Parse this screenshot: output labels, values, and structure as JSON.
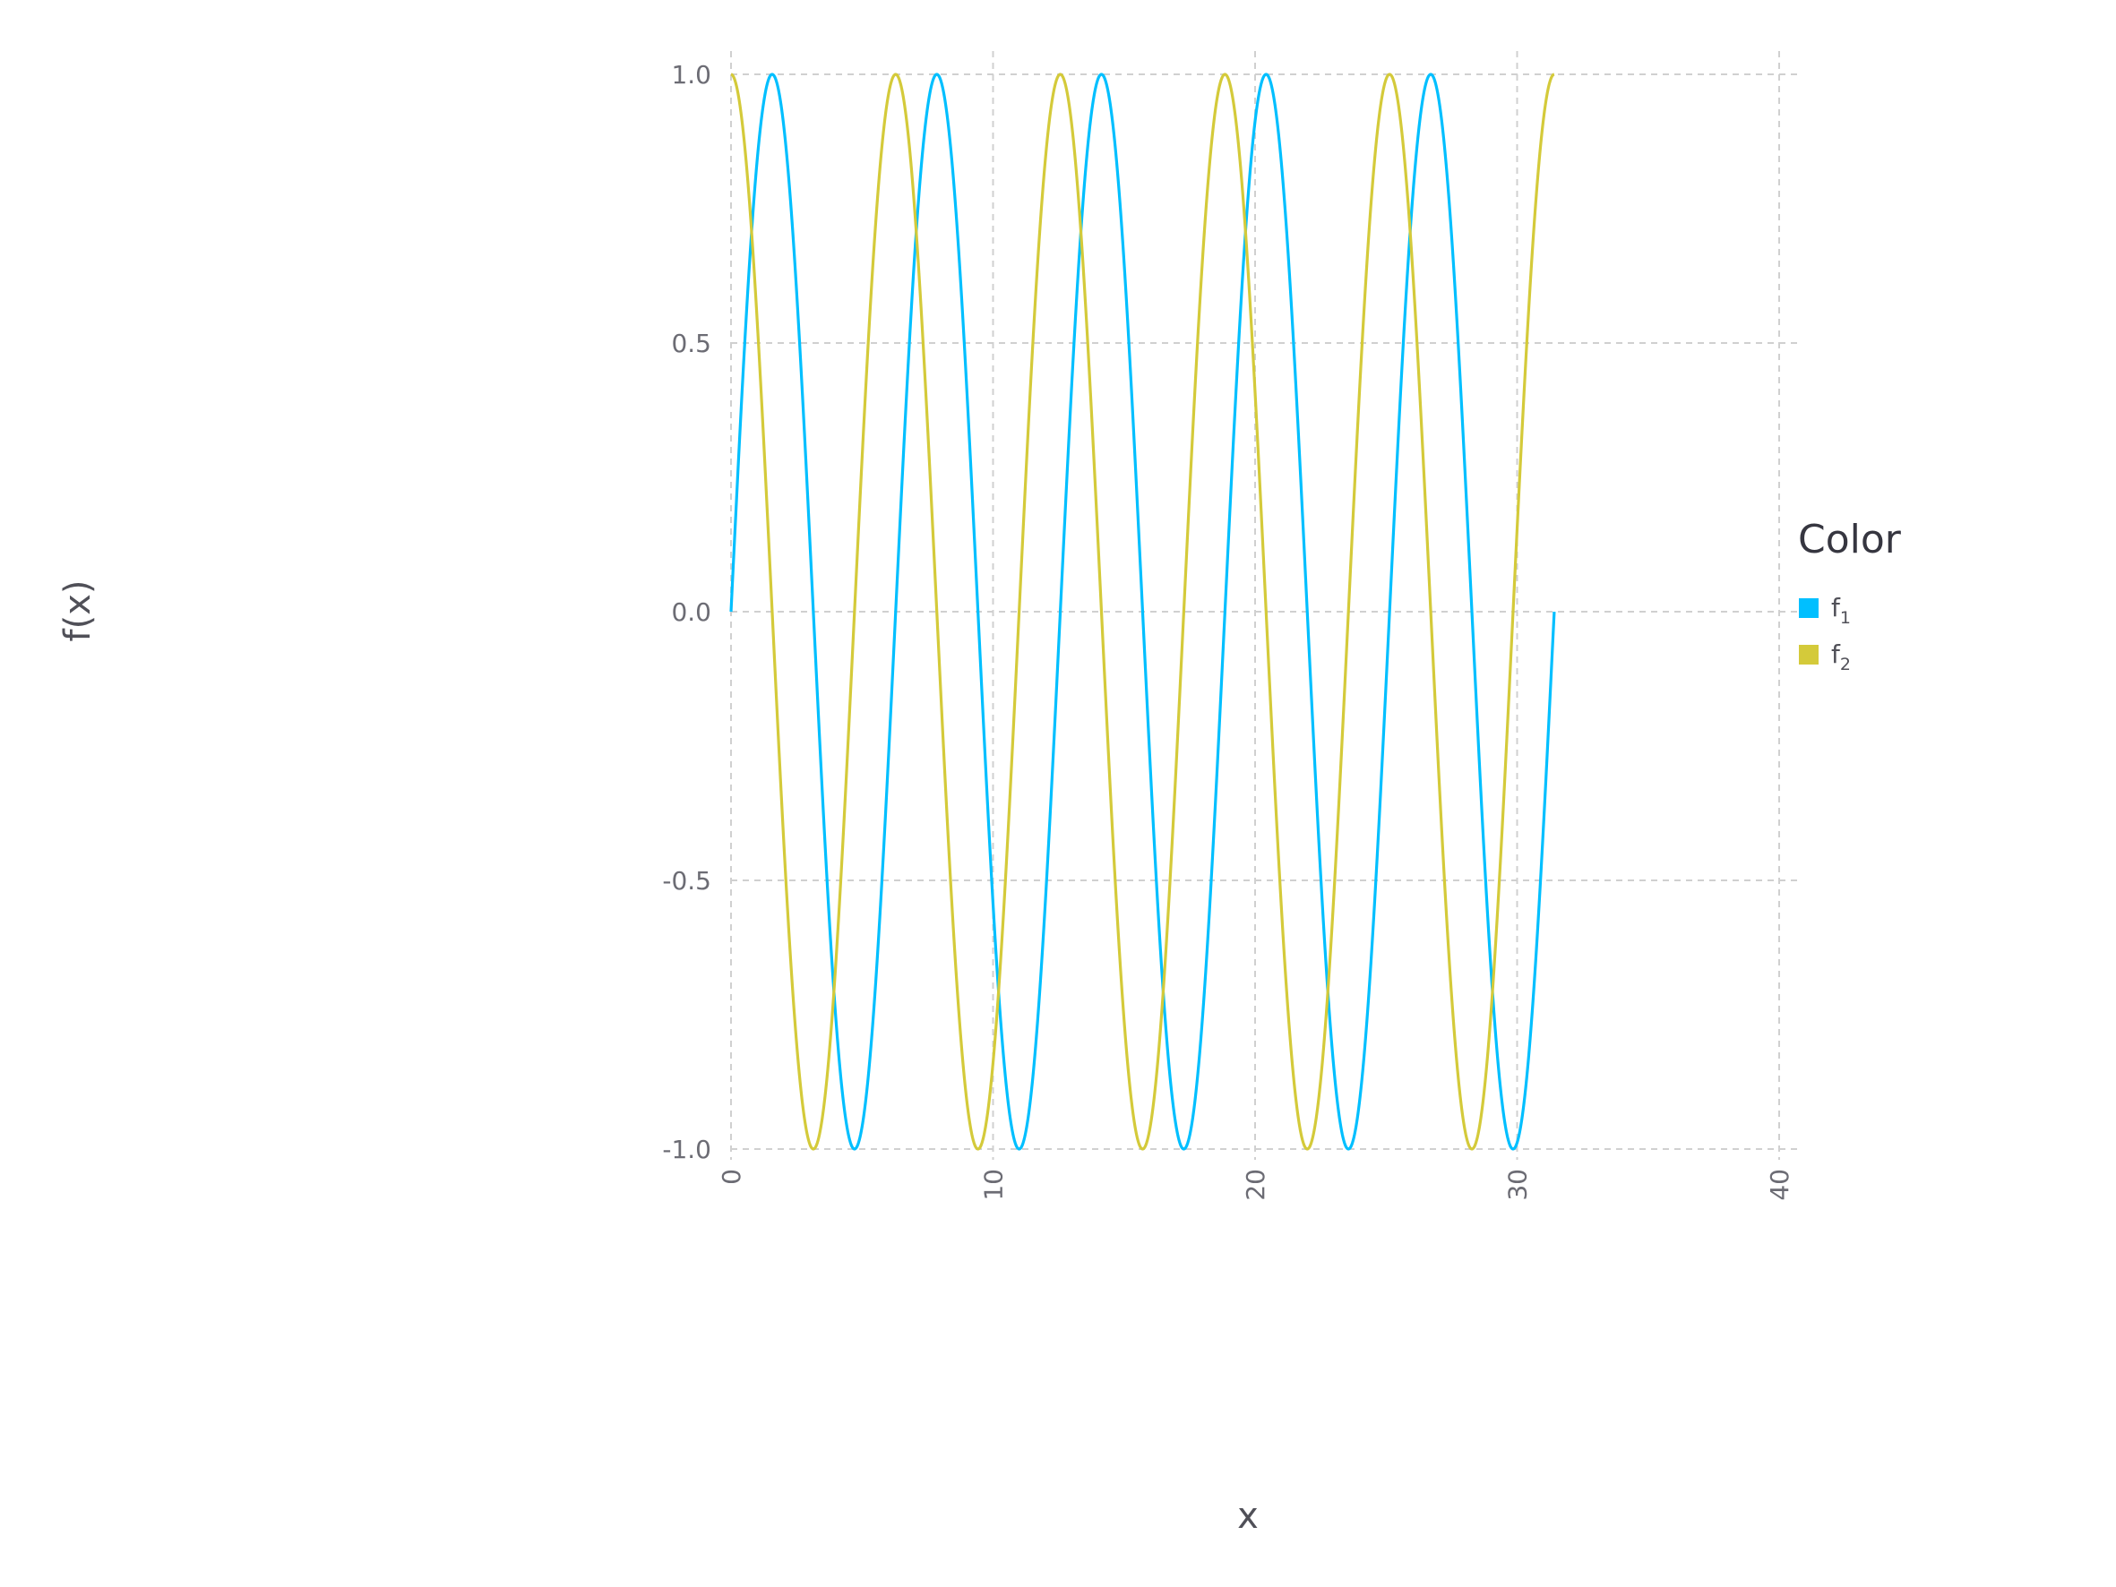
{
  "chart_data": {
    "type": "line",
    "xlabel": "x",
    "ylabel": "f(x)",
    "xlim": [
      0,
      40
    ],
    "ylim": [
      -1.0,
      1.0
    ],
    "xticks": [
      "0",
      "10",
      "20",
      "30",
      "40"
    ],
    "yticks": [
      "1.0",
      "0.5",
      "0.0",
      "-0.5",
      "-1.0"
    ],
    "grid": true,
    "legend": {
      "title": "Color",
      "placement": "right",
      "entries": [
        {
          "base": "f",
          "sub": "1",
          "color": "#00bfff"
        },
        {
          "base": "f",
          "sub": "2",
          "color": "#d4ca3a"
        }
      ]
    },
    "series": [
      {
        "name": "f1",
        "color": "#00bfff",
        "function": "sin",
        "x_start": 0,
        "x_end": 31.4159,
        "x": [
          0,
          1.5708,
          3.1416,
          4.7124,
          6.2832,
          7.854,
          9.4248,
          10.9956,
          12.5664,
          14.1372,
          15.708,
          17.2788,
          18.8496,
          20.4204,
          21.9911,
          23.5619,
          25.1327,
          26.7035,
          28.2743,
          29.8451,
          31.4159
        ],
        "y": [
          0,
          1,
          0,
          -1,
          0,
          1,
          0,
          -1,
          0,
          1,
          0,
          -1,
          0,
          1,
          0,
          -1,
          0,
          1,
          0,
          -1,
          0
        ]
      },
      {
        "name": "f2",
        "color": "#d4ca3a",
        "function": "cos",
        "x_start": 0,
        "x_end": 31.4159,
        "x": [
          0,
          1.5708,
          3.1416,
          4.7124,
          6.2832,
          7.854,
          9.4248,
          10.9956,
          12.5664,
          14.1372,
          15.708,
          17.2788,
          18.8496,
          20.4204,
          21.9911,
          23.5619,
          25.1327,
          26.7035,
          28.2743,
          29.8451,
          31.4159
        ],
        "y": [
          1,
          0,
          -1,
          0,
          1,
          0,
          -1,
          0,
          1,
          0,
          -1,
          0,
          1,
          0,
          -1,
          0,
          1,
          0,
          -1,
          0,
          1
        ]
      }
    ]
  }
}
